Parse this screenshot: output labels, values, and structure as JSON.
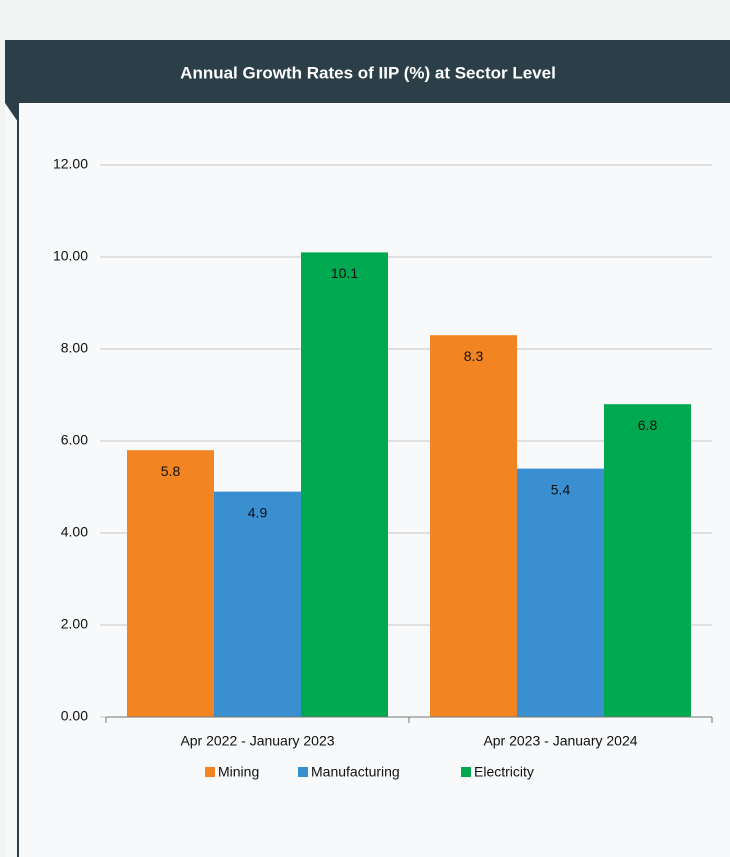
{
  "chart_data": {
    "type": "bar",
    "title": "Annual Growth Rates of IIP (%) at Sector Level",
    "categories": [
      "Apr 2022 - January 2023",
      "Apr 2023 - January 2024"
    ],
    "series": [
      {
        "name": "Mining",
        "color": "#f28522",
        "values": [
          5.8,
          8.3
        ]
      },
      {
        "name": "Manufacturing",
        "color": "#3a8fd1",
        "values": [
          4.9,
          5.4
        ]
      },
      {
        "name": "Electricity",
        "color": "#00a84f",
        "values": [
          10.1,
          6.8
        ]
      }
    ],
    "ylim": [
      0,
      12
    ],
    "yticks": [
      {
        "value": 0,
        "label": "0.00"
      },
      {
        "value": 2,
        "label": "2.00"
      },
      {
        "value": 4,
        "label": "4.00"
      },
      {
        "value": 6,
        "label": "6.00"
      },
      {
        "value": 8,
        "label": "8.00"
      },
      {
        "value": 10,
        "label": "10.00"
      },
      {
        "value": 12,
        "label": "12.00"
      }
    ],
    "grid": true,
    "legend": "bottom"
  }
}
